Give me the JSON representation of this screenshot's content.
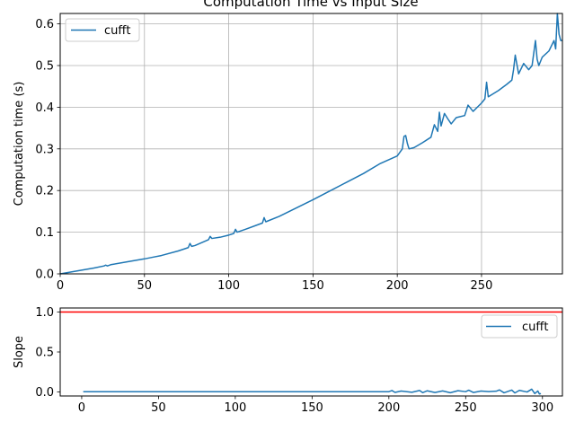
{
  "chart_data": [
    {
      "type": "line",
      "title": "Computation Time vs Input Size",
      "xlabel": "",
      "ylabel": "Computation time (s)",
      "xlim": [
        0,
        298
      ],
      "ylim": [
        0,
        0.625
      ],
      "xticks": [
        0,
        50,
        100,
        150,
        200,
        250
      ],
      "yticks": [
        0.0,
        0.1,
        0.2,
        0.3,
        0.4,
        0.5,
        0.6
      ],
      "xtick_labels": [
        "0",
        "50",
        "100",
        "150",
        "200",
        "250"
      ],
      "ytick_labels": [
        "0.0",
        "0.1",
        "0.2",
        "0.3",
        "0.4",
        "0.5",
        "0.6"
      ],
      "grid": true,
      "legend": "upper-left",
      "series": [
        {
          "name": "cufft",
          "color": "#1f77b4",
          "x": [
            0,
            10,
            20,
            26,
            27,
            28,
            30,
            40,
            50,
            55,
            60,
            70,
            76,
            77,
            78,
            80,
            88,
            89,
            90,
            95,
            100,
            103,
            104,
            105,
            110,
            120,
            121,
            122,
            130,
            140,
            150,
            160,
            170,
            180,
            190,
            200,
            203,
            204,
            205,
            206,
            207,
            210,
            215,
            220,
            222,
            224,
            225,
            226,
            228,
            230,
            232,
            235,
            240,
            242,
            245,
            250,
            252,
            253,
            254,
            256,
            260,
            265,
            268,
            269,
            270,
            272,
            275,
            278,
            280,
            282,
            283,
            284,
            286,
            290,
            293,
            294,
            295,
            296,
            297,
            298
          ],
          "y": [
            0.0,
            0.007,
            0.014,
            0.019,
            0.021,
            0.019,
            0.022,
            0.029,
            0.036,
            0.04,
            0.044,
            0.055,
            0.063,
            0.073,
            0.066,
            0.068,
            0.082,
            0.09,
            0.085,
            0.088,
            0.093,
            0.097,
            0.107,
            0.1,
            0.107,
            0.122,
            0.135,
            0.125,
            0.138,
            0.158,
            0.178,
            0.199,
            0.22,
            0.241,
            0.265,
            0.283,
            0.3,
            0.33,
            0.332,
            0.313,
            0.3,
            0.303,
            0.315,
            0.328,
            0.358,
            0.342,
            0.388,
            0.355,
            0.385,
            0.372,
            0.36,
            0.375,
            0.38,
            0.405,
            0.39,
            0.41,
            0.42,
            0.46,
            0.425,
            0.43,
            0.44,
            0.455,
            0.465,
            0.49,
            0.525,
            0.48,
            0.505,
            0.49,
            0.5,
            0.56,
            0.515,
            0.5,
            0.52,
            0.535,
            0.56,
            0.54,
            0.625,
            0.575,
            0.56,
            0.56
          ]
        }
      ]
    },
    {
      "type": "line",
      "title": "",
      "xlabel": "",
      "ylabel": "Slope",
      "xlim": [
        -14,
        313
      ],
      "ylim": [
        -0.05,
        1.05
      ],
      "xticks": [
        0,
        50,
        100,
        150,
        200,
        250,
        300
      ],
      "yticks": [
        0.0,
        0.5,
        1.0
      ],
      "xtick_labels": [
        "0",
        "50",
        "100",
        "150",
        "200",
        "250",
        "300"
      ],
      "ytick_labels": [
        "0.0",
        "0.5",
        "1.0"
      ],
      "grid": false,
      "legend": "upper-right",
      "reference_line": {
        "y": 1.0,
        "color": "#ff0000"
      },
      "series": [
        {
          "name": "cufft",
          "color": "#1f77b4",
          "x": [
            1,
            50,
            100,
            150,
            200,
            202,
            204,
            208,
            215,
            220,
            222,
            225,
            230,
            235,
            240,
            245,
            250,
            252,
            255,
            260,
            265,
            270,
            272,
            275,
            280,
            282,
            285,
            290,
            293,
            295,
            297,
            298,
            299
          ],
          "y": [
            0.003,
            0.003,
            0.004,
            0.004,
            0.004,
            0.018,
            -0.005,
            0.012,
            -0.004,
            0.019,
            -0.008,
            0.015,
            -0.006,
            0.013,
            -0.009,
            0.016,
            0.004,
            0.022,
            -0.006,
            0.012,
            0.005,
            0.01,
            0.026,
            -0.01,
            0.024,
            -0.012,
            0.02,
            0.0,
            0.035,
            -0.02,
            0.012,
            -0.025,
            -0.02
          ]
        }
      ]
    }
  ]
}
